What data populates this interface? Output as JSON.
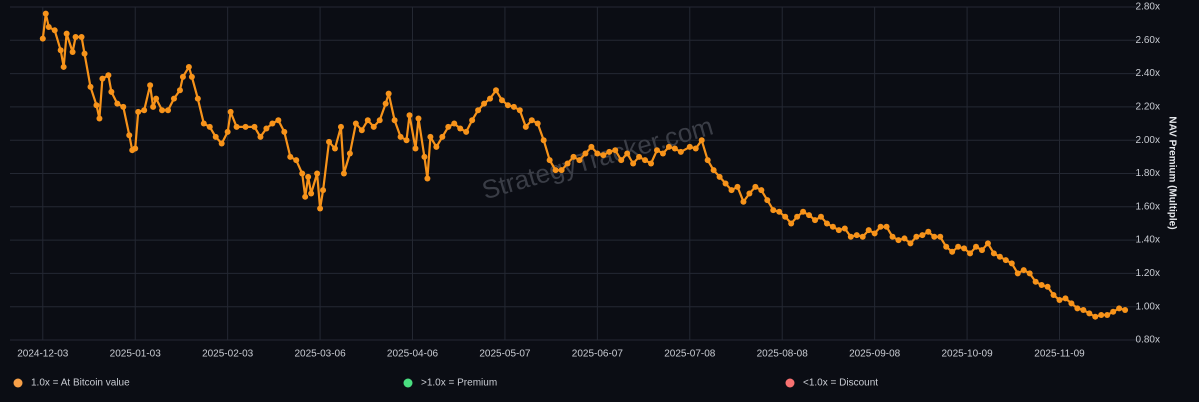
{
  "chart_data": {
    "type": "line",
    "watermark": "StrategyTracker.com",
    "y_label": "NAV Premium (Multiple)",
    "xlim": [
      "2024-11-22",
      "2025-12-06"
    ],
    "xticks": [
      "2024-12-03",
      "2025-01-03",
      "2025-02-03",
      "2025-03-06",
      "2025-04-06",
      "2025-05-07",
      "2025-06-07",
      "2025-07-08",
      "2025-08-08",
      "2025-09-08",
      "2025-10-09",
      "2025-11-09"
    ],
    "ylim": [
      0.8,
      2.8
    ],
    "yticks": [
      {
        "value": 0.8,
        "label": "0.80x"
      },
      {
        "value": 1.0,
        "label": "1.00x"
      },
      {
        "value": 1.2,
        "label": "1.20x"
      },
      {
        "value": 1.4,
        "label": "1.40x"
      },
      {
        "value": 1.6,
        "label": "1.60x"
      },
      {
        "value": 1.8,
        "label": "1.80x"
      },
      {
        "value": 2.0,
        "label": "2.00x"
      },
      {
        "value": 2.2,
        "label": "2.20x"
      },
      {
        "value": 2.4,
        "label": "2.40x"
      },
      {
        "value": 2.6,
        "label": "2.60x"
      },
      {
        "value": 2.8,
        "label": "2.80x"
      }
    ],
    "grid": true,
    "legend": [
      {
        "label": "1.0x = At Bitcoin value",
        "color": "#f7a048"
      },
      {
        "label": ">1.0x = Premium",
        "color": "#4ade80"
      },
      {
        "label": "<1.0x = Discount",
        "color": "#f87171"
      }
    ],
    "x": [
      "2024-12-03",
      "2024-12-04",
      "2024-12-05",
      "2024-12-07",
      "2024-12-09",
      "2024-12-10",
      "2024-12-11",
      "2024-12-13",
      "2024-12-14",
      "2024-12-16",
      "2024-12-17",
      "2024-12-19",
      "2024-12-21",
      "2024-12-22",
      "2024-12-23",
      "2024-12-25",
      "2024-12-26",
      "2024-12-28",
      "2024-12-30",
      "2025-01-01",
      "2025-01-02",
      "2025-01-03",
      "2025-01-04",
      "2025-01-06",
      "2025-01-08",
      "2025-01-09",
      "2025-01-10",
      "2025-01-12",
      "2025-01-14",
      "2025-01-16",
      "2025-01-18",
      "2025-01-19",
      "2025-01-21",
      "2025-01-22",
      "2025-01-24",
      "2025-01-26",
      "2025-01-28",
      "2025-01-30",
      "2025-02-01",
      "2025-02-03",
      "2025-02-04",
      "2025-02-06",
      "2025-02-09",
      "2025-02-12",
      "2025-02-14",
      "2025-02-16",
      "2025-02-18",
      "2025-02-20",
      "2025-02-22",
      "2025-02-24",
      "2025-02-26",
      "2025-02-28",
      "2025-03-01",
      "2025-03-02",
      "2025-03-03",
      "2025-03-05",
      "2025-03-06",
      "2025-03-07",
      "2025-03-09",
      "2025-03-11",
      "2025-03-13",
      "2025-03-14",
      "2025-03-16",
      "2025-03-18",
      "2025-03-20",
      "2025-03-22",
      "2025-03-24",
      "2025-03-26",
      "2025-03-28",
      "2025-03-29",
      "2025-03-31",
      "2025-04-02",
      "2025-04-04",
      "2025-04-05",
      "2025-04-07",
      "2025-04-08",
      "2025-04-10",
      "2025-04-11",
      "2025-04-12",
      "2025-04-14",
      "2025-04-16",
      "2025-04-18",
      "2025-04-20",
      "2025-04-22",
      "2025-04-24",
      "2025-04-26",
      "2025-04-28",
      "2025-04-30",
      "2025-05-02",
      "2025-05-04",
      "2025-05-06",
      "2025-05-08",
      "2025-05-10",
      "2025-05-12",
      "2025-05-14",
      "2025-05-16",
      "2025-05-18",
      "2025-05-20",
      "2025-05-22",
      "2025-05-24",
      "2025-05-26",
      "2025-05-28",
      "2025-05-30",
      "2025-06-01",
      "2025-06-03",
      "2025-06-05",
      "2025-06-07",
      "2025-06-09",
      "2025-06-11",
      "2025-06-13",
      "2025-06-15",
      "2025-06-17",
      "2025-06-19",
      "2025-06-21",
      "2025-06-23",
      "2025-06-25",
      "2025-06-27",
      "2025-06-29",
      "2025-07-01",
      "2025-07-03",
      "2025-07-05",
      "2025-07-08",
      "2025-07-10",
      "2025-07-12",
      "2025-07-14",
      "2025-07-16",
      "2025-07-18",
      "2025-07-20",
      "2025-07-22",
      "2025-07-24",
      "2025-07-26",
      "2025-07-28",
      "2025-07-30",
      "2025-08-01",
      "2025-08-03",
      "2025-08-05",
      "2025-08-07",
      "2025-08-09",
      "2025-08-11",
      "2025-08-13",
      "2025-08-15",
      "2025-08-17",
      "2025-08-19",
      "2025-08-21",
      "2025-08-23",
      "2025-08-25",
      "2025-08-27",
      "2025-08-29",
      "2025-08-31",
      "2025-09-02",
      "2025-09-04",
      "2025-09-06",
      "2025-09-08",
      "2025-09-10",
      "2025-09-12",
      "2025-09-14",
      "2025-09-16",
      "2025-09-18",
      "2025-09-20",
      "2025-09-22",
      "2025-09-24",
      "2025-09-26",
      "2025-09-28",
      "2025-09-30",
      "2025-10-02",
      "2025-10-04",
      "2025-10-06",
      "2025-10-08",
      "2025-10-10",
      "2025-10-12",
      "2025-10-14",
      "2025-10-16",
      "2025-10-18",
      "2025-10-20",
      "2025-10-22",
      "2025-10-24",
      "2025-10-26",
      "2025-10-28",
      "2025-10-30",
      "2025-11-01",
      "2025-11-03",
      "2025-11-05",
      "2025-11-07",
      "2025-11-09",
      "2025-11-11",
      "2025-11-13",
      "2025-11-15",
      "2025-11-17",
      "2025-11-19",
      "2025-11-21",
      "2025-11-23",
      "2025-11-25",
      "2025-11-27",
      "2025-11-29",
      "2025-12-01"
    ],
    "series": [
      {
        "color": "#f7931a",
        "values": [
          2.61,
          2.76,
          2.68,
          2.66,
          2.54,
          2.44,
          2.64,
          2.53,
          2.62,
          2.62,
          2.52,
          2.32,
          2.21,
          2.13,
          2.37,
          2.39,
          2.29,
          2.22,
          2.2,
          2.03,
          1.94,
          1.95,
          2.17,
          2.18,
          2.33,
          2.2,
          2.25,
          2.18,
          2.18,
          2.25,
          2.3,
          2.38,
          2.44,
          2.38,
          2.25,
          2.1,
          2.08,
          2.02,
          1.98,
          2.05,
          2.17,
          2.08,
          2.08,
          2.08,
          2.02,
          2.07,
          2.1,
          2.12,
          2.05,
          1.9,
          1.88,
          1.8,
          1.66,
          1.78,
          1.68,
          1.8,
          1.59,
          1.7,
          1.99,
          1.95,
          2.08,
          1.8,
          1.92,
          2.1,
          2.06,
          2.12,
          2.08,
          2.12,
          2.22,
          2.28,
          2.12,
          2.02,
          2.0,
          2.15,
          1.95,
          2.13,
          1.9,
          1.77,
          2.02,
          1.96,
          2.02,
          2.08,
          2.1,
          2.07,
          2.05,
          2.12,
          2.18,
          2.22,
          2.25,
          2.3,
          2.24,
          2.21,
          2.2,
          2.18,
          2.08,
          2.12,
          2.1,
          2.0,
          1.88,
          1.82,
          1.82,
          1.86,
          1.9,
          1.88,
          1.92,
          1.96,
          1.92,
          1.91,
          1.93,
          1.94,
          1.88,
          1.92,
          1.86,
          1.9,
          1.88,
          1.86,
          1.94,
          1.92,
          1.96,
          1.95,
          1.93,
          1.96,
          1.95,
          2.0,
          1.88,
          1.82,
          1.78,
          1.74,
          1.7,
          1.72,
          1.63,
          1.68,
          1.72,
          1.7,
          1.64,
          1.58,
          1.57,
          1.54,
          1.5,
          1.54,
          1.57,
          1.55,
          1.52,
          1.54,
          1.5,
          1.48,
          1.46,
          1.47,
          1.42,
          1.43,
          1.42,
          1.46,
          1.44,
          1.48,
          1.48,
          1.42,
          1.4,
          1.41,
          1.38,
          1.42,
          1.43,
          1.45,
          1.42,
          1.42,
          1.36,
          1.33,
          1.36,
          1.35,
          1.32,
          1.36,
          1.34,
          1.38,
          1.32,
          1.3,
          1.28,
          1.26,
          1.2,
          1.22,
          1.2,
          1.15,
          1.13,
          1.12,
          1.07,
          1.04,
          1.05,
          1.02,
          0.99,
          0.98,
          0.96,
          0.94,
          0.95,
          0.95,
          0.97,
          0.99,
          0.98
        ]
      }
    ]
  }
}
